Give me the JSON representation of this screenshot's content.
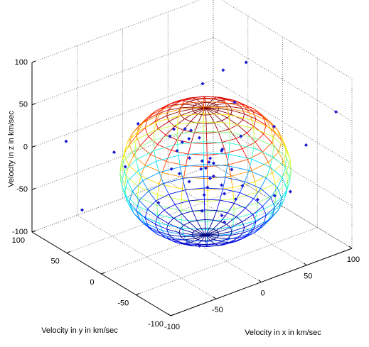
{
  "chart_data": {
    "type": "scatter3d",
    "xlabel": "Velocity in x in km/sec",
    "ylabel": "Velocity in y in km/sec",
    "zlabel": "Velocity in z in km/sec",
    "xlim": [
      -100,
      100
    ],
    "ylim": [
      -100,
      100
    ],
    "zlim": [
      -100,
      100
    ],
    "xticks": [
      -100,
      -50,
      0,
      50,
      100
    ],
    "yticks": [
      -100,
      -50,
      0,
      50,
      100
    ],
    "zticks": [
      -100,
      -50,
      0,
      50,
      100
    ],
    "grid": true,
    "color": "#1a1ad0",
    "sphere": {
      "center": [
        15,
        0,
        -25
      ],
      "radius": 75
    },
    "points": {
      "x": [
        10,
        5,
        20,
        -5,
        15,
        25,
        0,
        30,
        12,
        8,
        -10,
        18,
        22,
        35,
        3,
        -8,
        28,
        14,
        6,
        40,
        -15,
        10,
        25,
        2,
        16,
        33,
        -3,
        20,
        9,
        45,
        60,
        70,
        -40,
        -60,
        80,
        50,
        -30,
        55,
        65,
        -20,
        90,
        -70,
        30,
        75,
        5,
        38,
        -25,
        48,
        12,
        26
      ],
      "y": [
        0,
        10,
        -5,
        15,
        5,
        -10,
        -20,
        8,
        20,
        -12,
        5,
        25,
        -18,
        3,
        30,
        -25,
        12,
        -8,
        18,
        -5,
        10,
        -30,
        22,
        -15,
        35,
        -20,
        28,
        0,
        -35,
        15,
        -40,
        30,
        60,
        80,
        -60,
        50,
        -50,
        -70,
        40,
        70,
        -90,
        90,
        -80,
        20,
        55,
        -45,
        45,
        -10,
        -55,
        38
      ],
      "z": [
        -20,
        -10,
        -30,
        0,
        -15,
        -40,
        -5,
        -25,
        5,
        -35,
        -20,
        10,
        -45,
        -10,
        15,
        -50,
        -25,
        -5,
        20,
        -30,
        -15,
        -60,
        0,
        -40,
        -8,
        -55,
        10,
        -35,
        -65,
        -18,
        30,
        20,
        -10,
        -80,
        10,
        40,
        -70,
        -30,
        55,
        -40,
        60,
        0,
        -20,
        70,
        -85,
        -45,
        25,
        -50,
        45,
        -60
      ]
    }
  }
}
